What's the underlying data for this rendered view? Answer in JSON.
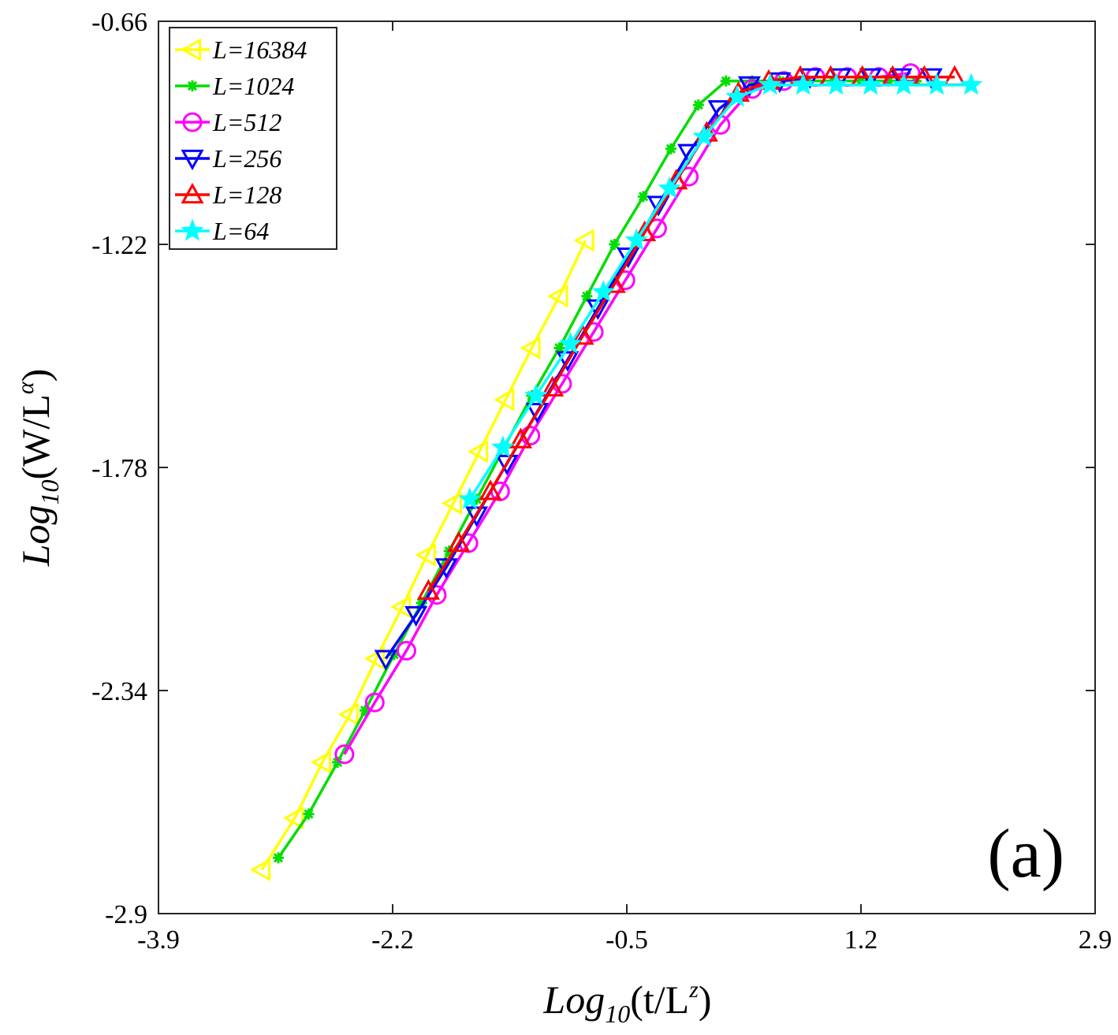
{
  "chart_data": {
    "type": "line",
    "xlabel": {
      "base": "Log",
      "sub": "10",
      "open": "(t/L",
      "sup": "z",
      "close": ")"
    },
    "ylabel": {
      "base": "Log",
      "sub": "10",
      "open": "(W/L",
      "sup": "α",
      "close": ")"
    },
    "xlim": [
      -3.9,
      2.9
    ],
    "ylim": [
      -2.9,
      -0.66
    ],
    "xticks": [
      -3.9,
      -2.2,
      -0.5,
      1.2,
      2.9
    ],
    "xtick_labels": [
      "-3.9",
      "-2.2",
      "-0.5",
      "1.2",
      "2.9"
    ],
    "yticks": [
      -2.9,
      -2.34,
      -1.78,
      -1.22,
      -0.66
    ],
    "ytick_labels": [
      "-2.9",
      "-2.34",
      "-1.78",
      "-1.22",
      "-0.66"
    ],
    "panel_label": "(a)",
    "legend_position": "top-left",
    "series": [
      {
        "name": "L=16384",
        "label": "L=16384",
        "color": "#FFFF00",
        "marker": "triangle-left",
        "x": [
          -3.15,
          -2.91,
          -2.71,
          -2.51,
          -2.32,
          -2.13,
          -1.95,
          -1.76,
          -1.57,
          -1.38,
          -1.19,
          -0.99,
          -0.8
        ],
        "y": [
          -2.79,
          -2.66,
          -2.52,
          -2.4,
          -2.26,
          -2.13,
          -2.0,
          -1.87,
          -1.74,
          -1.61,
          -1.48,
          -1.35,
          -1.21
        ]
      },
      {
        "name": "L=1024",
        "label": "L=1024",
        "color": "#00DD00",
        "marker": "asterisk",
        "x": [
          -3.03,
          -2.81,
          -2.6,
          -2.4,
          -2.19,
          -1.99,
          -1.79,
          -1.59,
          -1.39,
          -1.19,
          -0.99,
          -0.79,
          -0.59,
          -0.38,
          -0.18,
          0.02,
          0.22,
          0.41,
          0.61,
          0.81,
          1.0,
          1.2,
          1.4,
          1.6
        ],
        "y": [
          -2.76,
          -2.65,
          -2.52,
          -2.39,
          -2.25,
          -2.12,
          -1.99,
          -1.86,
          -1.73,
          -1.6,
          -1.48,
          -1.35,
          -1.22,
          -1.1,
          -0.98,
          -0.87,
          -0.81,
          -0.81,
          -0.81,
          -0.81,
          -0.81,
          -0.81,
          -0.81,
          -0.81
        ]
      },
      {
        "name": "L=512",
        "label": "L=512",
        "color": "#FF00FF",
        "marker": "circle",
        "x": [
          -2.55,
          -2.33,
          -2.1,
          -1.88,
          -1.65,
          -1.42,
          -1.2,
          -0.97,
          -0.74,
          -0.51,
          -0.28,
          -0.05,
          0.18,
          0.41,
          0.64,
          0.87,
          1.1,
          1.33,
          1.56
        ],
        "y": [
          -2.5,
          -2.37,
          -2.24,
          -2.1,
          -1.97,
          -1.84,
          -1.7,
          -1.57,
          -1.44,
          -1.31,
          -1.18,
          -1.05,
          -0.92,
          -0.83,
          -0.81,
          -0.8,
          -0.8,
          -0.8,
          -0.79
        ]
      },
      {
        "name": "L=256",
        "label": "L=256",
        "color": "#0000FF",
        "marker": "triangle-down",
        "x": [
          -2.25,
          -2.03,
          -1.81,
          -1.59,
          -1.37,
          -1.15,
          -0.93,
          -0.71,
          -0.49,
          -0.27,
          -0.05,
          0.17,
          0.39,
          0.61,
          0.83,
          1.05,
          1.27,
          1.49,
          1.71
        ],
        "y": [
          -2.26,
          -2.15,
          -2.03,
          -1.9,
          -1.77,
          -1.64,
          -1.51,
          -1.38,
          -1.25,
          -1.12,
          -0.99,
          -0.88,
          -0.82,
          -0.81,
          -0.8,
          -0.8,
          -0.8,
          -0.8,
          -0.8
        ]
      },
      {
        "name": "L=128",
        "label": "L=128",
        "color": "#FF0000",
        "marker": "triangle-up",
        "x": [
          -1.94,
          -1.72,
          -1.49,
          -1.27,
          -1.04,
          -0.82,
          -0.59,
          -0.37,
          -0.14,
          0.08,
          0.31,
          0.53,
          0.76,
          0.98,
          1.21,
          1.43,
          1.66,
          1.88
        ],
        "y": [
          -2.09,
          -1.97,
          -1.84,
          -1.71,
          -1.58,
          -1.45,
          -1.32,
          -1.19,
          -1.06,
          -0.94,
          -0.84,
          -0.81,
          -0.8,
          -0.8,
          -0.8,
          -0.8,
          -0.8,
          -0.8
        ]
      },
      {
        "name": "L=64",
        "label": "L=64",
        "color": "#00FFFF",
        "marker": "star",
        "x": [
          -1.64,
          -1.4,
          -1.16,
          -0.91,
          -0.67,
          -0.43,
          -0.19,
          0.06,
          0.3,
          0.54,
          0.78,
          1.02,
          1.27,
          1.51,
          1.75,
          2.0
        ],
        "y": [
          -1.86,
          -1.73,
          -1.6,
          -1.47,
          -1.34,
          -1.21,
          -1.08,
          -0.95,
          -0.85,
          -0.82,
          -0.82,
          -0.82,
          -0.82,
          -0.82,
          -0.82,
          -0.82
        ]
      }
    ]
  }
}
